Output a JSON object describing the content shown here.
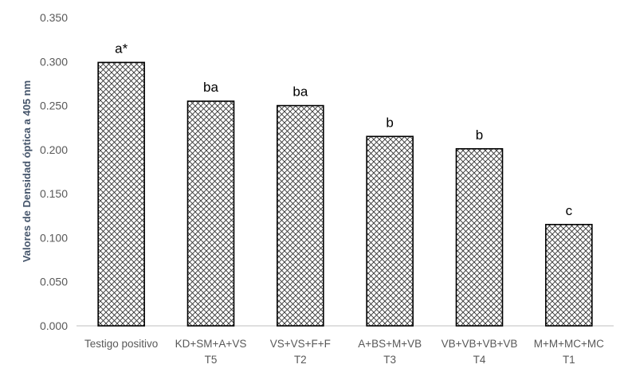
{
  "chart_data": {
    "type": "bar",
    "ylabel": "Valores de Densidad óptica a 405 nm",
    "ylim": [
      0,
      0.35
    ],
    "yticks": [
      "0.000",
      "0.050",
      "0.100",
      "0.150",
      "0.200",
      "0.250",
      "0.300",
      "0.350"
    ],
    "grid": false,
    "legend": "none",
    "categories": [
      {
        "line1": "Testigo positivo",
        "line2": ""
      },
      {
        "line1": "KD+SM+A+VS",
        "line2": "T5"
      },
      {
        "line1": "VS+VS+F+F",
        "line2": "T2"
      },
      {
        "line1": "A+BS+M+VB",
        "line2": "T3"
      },
      {
        "line1": "VB+VB+VB+VB",
        "line2": "T4"
      },
      {
        "line1": "M+M+MC+MC",
        "line2": "T1"
      }
    ],
    "values": [
      0.299,
      0.255,
      0.25,
      0.215,
      0.201,
      0.115
    ],
    "annotations": [
      "a*",
      "ba",
      "ba",
      "b",
      "b",
      "c"
    ],
    "bar_fill": "crosshatch",
    "bar_color": "#000000",
    "axis_color": "#bfbfbf",
    "ylabel_color": "#44546a",
    "tick_color": "#595959"
  }
}
